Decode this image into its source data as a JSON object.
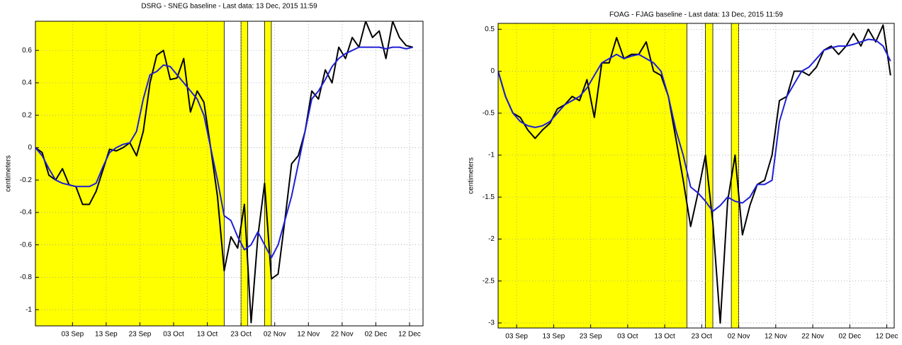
{
  "chart_data": [
    {
      "type": "line",
      "title": "DSRG - SNEG baseline - Last data: 13 Dec, 2015 11:59",
      "y_label": "centimeters",
      "x": [
        "08-23",
        "08-25",
        "08-27",
        "08-29",
        "08-31",
        "09-02",
        "09-04",
        "09-06",
        "09-08",
        "09-10",
        "09-12",
        "09-14",
        "09-16",
        "09-18",
        "09-20",
        "09-22",
        "09-24",
        "09-26",
        "09-28",
        "09-30",
        "10-02",
        "10-04",
        "10-06",
        "10-08",
        "10-10",
        "10-12",
        "10-14",
        "10-16",
        "10-18",
        "10-20",
        "10-22",
        "10-24",
        "10-26",
        "10-28",
        "10-30",
        "11-01",
        "11-03",
        "11-05",
        "11-07",
        "11-09",
        "11-11",
        "11-13",
        "11-15",
        "11-17",
        "11-19",
        "11-21",
        "11-23",
        "11-25",
        "11-27",
        "11-29",
        "12-01",
        "12-03",
        "12-05",
        "12-07",
        "12-09",
        "12-11",
        "12-13"
      ],
      "series": [
        {
          "color": "#000000",
          "values": [
            0,
            -0.03,
            -0.17,
            -0.2,
            -0.13,
            -0.23,
            -0.24,
            -0.35,
            -0.35,
            -0.27,
            -0.14,
            -0.01,
            -0.02,
            0,
            0.03,
            -0.05,
            0.1,
            0.4,
            0.57,
            0.6,
            0.42,
            0.43,
            0.55,
            0.22,
            0.35,
            0.28,
            0,
            -0.3,
            -0.76,
            -0.55,
            -0.62,
            -0.35,
            -1.08,
            -0.55,
            -0.22,
            -0.81,
            -0.78,
            -0.45,
            -0.1,
            -0.05,
            0.1,
            0.35,
            0.3,
            0.48,
            0.4,
            0.62,
            0.55,
            0.68,
            0.62,
            0.78,
            0.68,
            0.72,
            0.55,
            0.78,
            0.68,
            0.63,
            0.62
          ]
        },
        {
          "color": "#1f1fd6",
          "values": [
            0,
            -0.05,
            -0.13,
            -0.2,
            -0.22,
            -0.23,
            -0.24,
            -0.24,
            -0.24,
            -0.22,
            -0.12,
            -0.03,
            0,
            0.02,
            0.03,
            0.1,
            0.3,
            0.45,
            0.47,
            0.51,
            0.5,
            0.45,
            0.4,
            0.35,
            0.3,
            0.2,
            0,
            -0.2,
            -0.42,
            -0.45,
            -0.55,
            -0.63,
            -0.6,
            -0.52,
            -0.6,
            -0.68,
            -0.6,
            -0.45,
            -0.3,
            -0.1,
            0.1,
            0.3,
            0.35,
            0.42,
            0.5,
            0.55,
            0.58,
            0.6,
            0.62,
            0.62,
            0.62,
            0.62,
            0.61,
            0.62,
            0.62,
            0.61,
            0.62
          ]
        }
      ],
      "spans": [
        [
          "08-23",
          "10-18"
        ],
        [
          "10-23",
          "10-25"
        ],
        [
          "10-30",
          "11-01"
        ]
      ],
      "span_color": "#ffff00",
      "xlim": [
        "08-23",
        "12-16"
      ],
      "xticks": [
        {
          "value": "09-03",
          "label": "03 Sep"
        },
        {
          "value": "09-13",
          "label": "13 Sep"
        },
        {
          "value": "09-23",
          "label": "23 Sep"
        },
        {
          "value": "10-03",
          "label": "03 Oct"
        },
        {
          "value": "10-13",
          "label": "13 Oct"
        },
        {
          "value": "10-23",
          "label": "23 Oct"
        },
        {
          "value": "11-02",
          "label": "02 Nov"
        },
        {
          "value": "11-12",
          "label": "12 Nov"
        },
        {
          "value": "11-22",
          "label": "22 Nov"
        },
        {
          "value": "12-02",
          "label": "02 Dec"
        },
        {
          "value": "12-12",
          "label": "12 Dec"
        }
      ],
      "ylim": [
        -1.1,
        0.78
      ],
      "yticks": [
        -1,
        -0.8,
        -0.6,
        -0.4,
        -0.2,
        0,
        0.2,
        0.4,
        0.6
      ],
      "grid": true
    },
    {
      "type": "line",
      "title": "FOAG - FJAG baseline - Last data: 13 Dec, 2015 11:59",
      "y_label": "centimeters",
      "x": [
        "08-29",
        "08-31",
        "09-02",
        "09-04",
        "09-06",
        "09-08",
        "09-10",
        "09-12",
        "09-14",
        "09-16",
        "09-18",
        "09-20",
        "09-22",
        "09-24",
        "09-26",
        "09-28",
        "09-30",
        "10-02",
        "10-04",
        "10-06",
        "10-08",
        "10-10",
        "10-12",
        "10-14",
        "10-16",
        "10-18",
        "10-20",
        "10-22",
        "10-24",
        "10-26",
        "10-28",
        "10-30",
        "11-01",
        "11-03",
        "11-05",
        "11-07",
        "11-09",
        "11-11",
        "11-13",
        "11-15",
        "11-17",
        "11-19",
        "11-21",
        "11-23",
        "11-25",
        "11-27",
        "11-29",
        "12-01",
        "12-03",
        "12-05",
        "12-07",
        "12-09",
        "12-11",
        "12-13"
      ],
      "series": [
        {
          "color": "#000000",
          "values": [
            0,
            -0.3,
            -0.5,
            -0.55,
            -0.7,
            -0.8,
            -0.7,
            -0.62,
            -0.45,
            -0.4,
            -0.3,
            -0.35,
            -0.1,
            -0.55,
            0.1,
            0.1,
            0.4,
            0.15,
            0.2,
            0.2,
            0.35,
            0,
            -0.05,
            -0.3,
            -0.8,
            -1.3,
            -1.85,
            -1.45,
            -1.0,
            -1.8,
            -3.0,
            -1.55,
            -1.0,
            -1.95,
            -1.6,
            -1.35,
            -1.3,
            -1.0,
            -0.35,
            -0.3,
            0,
            0,
            -0.05,
            0.05,
            0.25,
            0.3,
            0.2,
            0.3,
            0.45,
            0.3,
            0.5,
            0.35,
            0.55,
            -0.05
          ]
        },
        {
          "color": "#1f1fd6",
          "values": [
            0,
            -0.3,
            -0.5,
            -0.6,
            -0.65,
            -0.67,
            -0.65,
            -0.6,
            -0.5,
            -0.4,
            -0.35,
            -0.3,
            -0.2,
            -0.05,
            0.1,
            0.15,
            0.2,
            0.15,
            0.18,
            0.2,
            0.15,
            0.1,
            0,
            -0.3,
            -0.7,
            -1.0,
            -1.38,
            -1.45,
            -1.55,
            -1.67,
            -1.6,
            -1.5,
            -1.55,
            -1.57,
            -1.5,
            -1.35,
            -1.35,
            -1.3,
            -0.6,
            -0.3,
            -0.15,
            0,
            0.05,
            0.15,
            0.25,
            0.28,
            0.3,
            0.3,
            0.32,
            0.35,
            0.38,
            0.37,
            0.3,
            0.12
          ]
        }
      ],
      "spans": [
        [
          "08-29",
          "10-19"
        ],
        [
          "10-24",
          "10-26"
        ],
        [
          "10-31",
          "11-02"
        ]
      ],
      "span_color": "#ffff00",
      "xlim": [
        "08-29",
        "12-14"
      ],
      "xticks": [
        {
          "value": "09-03",
          "label": "03 Sep"
        },
        {
          "value": "09-13",
          "label": "13 Sep"
        },
        {
          "value": "09-23",
          "label": "23 Sep"
        },
        {
          "value": "10-03",
          "label": "03 Oct"
        },
        {
          "value": "10-13",
          "label": "13 Oct"
        },
        {
          "value": "10-23",
          "label": "23 Oct"
        },
        {
          "value": "11-02",
          "label": "02 Nov"
        },
        {
          "value": "11-12",
          "label": "12 Nov"
        },
        {
          "value": "11-22",
          "label": "22 Nov"
        },
        {
          "value": "12-02",
          "label": "02 Dec"
        },
        {
          "value": "12-12",
          "label": "12 Dec"
        }
      ],
      "ylim": [
        -3.06,
        0.57
      ],
      "yticks": [
        -3,
        -2.5,
        -2,
        -1.5,
        -1,
        -0.5,
        0,
        0.5
      ],
      "grid": true
    }
  ]
}
